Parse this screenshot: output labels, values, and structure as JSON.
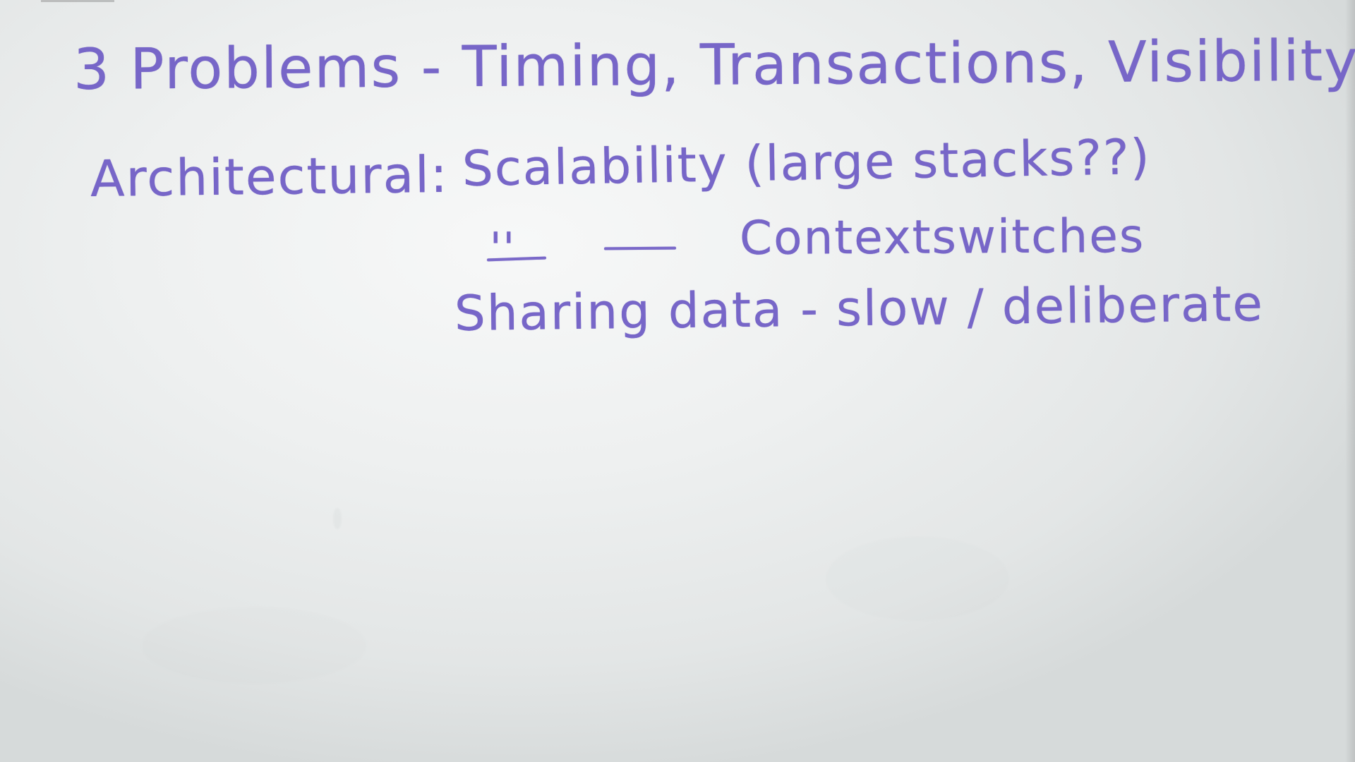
{
  "whiteboard": {
    "lines": [
      "3 Problems - Timing, Transactions, Visibility",
      "Architectural:",
      "Scalability (large stacks??)",
      "''",
      "Contextswitches",
      "Sharing data - slow / deliberate"
    ],
    "ink_color": "#7766c8"
  }
}
